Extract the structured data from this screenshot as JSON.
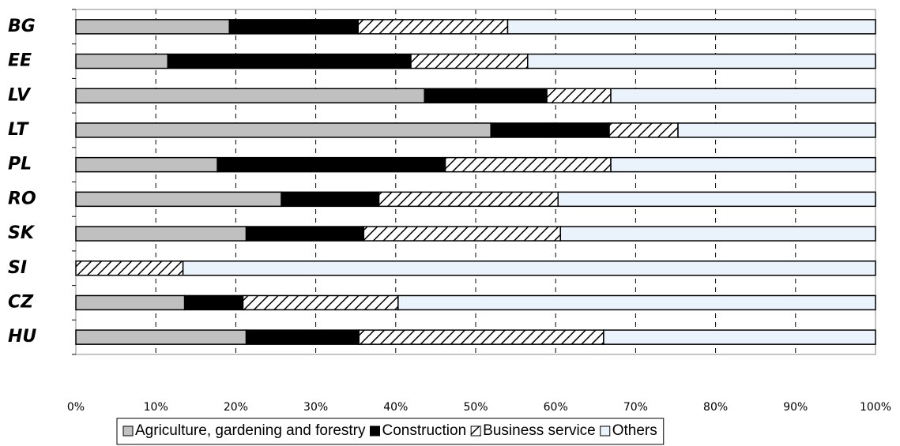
{
  "chart_data": {
    "type": "stacked-bar-horizontal",
    "categories": [
      "BG",
      "EE",
      "LV",
      "LT",
      "PL",
      "RO",
      "SK",
      "SI",
      "CZ",
      "HU"
    ],
    "series": [
      {
        "name": "Agriculture, gardening and forestry",
        "color": "#c0c0c0",
        "values": [
          19.2,
          11.5,
          43.6,
          51.9,
          17.7,
          25.7,
          21.3,
          0,
          13.6,
          21.3
        ]
      },
      {
        "name": "Construction",
        "color": "#000000",
        "values": [
          16.1,
          30.4,
          15.3,
          14.8,
          28.5,
          12.2,
          14.7,
          0,
          7.3,
          14.1
        ]
      },
      {
        "name": "Business service",
        "color": "#ffffff",
        "pattern": "hatch",
        "values": [
          18.7,
          14.6,
          8.0,
          8.6,
          20.7,
          22.4,
          24.6,
          13.4,
          19.4,
          30.6
        ]
      },
      {
        "name": "Others",
        "color": "#eaf3fb",
        "values": [
          46.0,
          43.5,
          33.1,
          24.7,
          33.1,
          39.7,
          39.4,
          86.6,
          59.7,
          34.0
        ]
      }
    ],
    "xlim": [
      0,
      100
    ],
    "xticks": [
      {
        "value": 0,
        "label": "0%"
      },
      {
        "value": 10,
        "label": "10%"
      },
      {
        "value": 20,
        "label": "20%"
      },
      {
        "value": 30,
        "label": "30%"
      },
      {
        "value": 40,
        "label": "40%"
      },
      {
        "value": 50,
        "label": "50%"
      },
      {
        "value": 60,
        "label": "60%"
      },
      {
        "value": 70,
        "label": "70%"
      },
      {
        "value": 80,
        "label": "80%"
      },
      {
        "value": 90,
        "label": "90%"
      },
      {
        "value": 100,
        "label": "100%"
      }
    ],
    "grid": true
  }
}
